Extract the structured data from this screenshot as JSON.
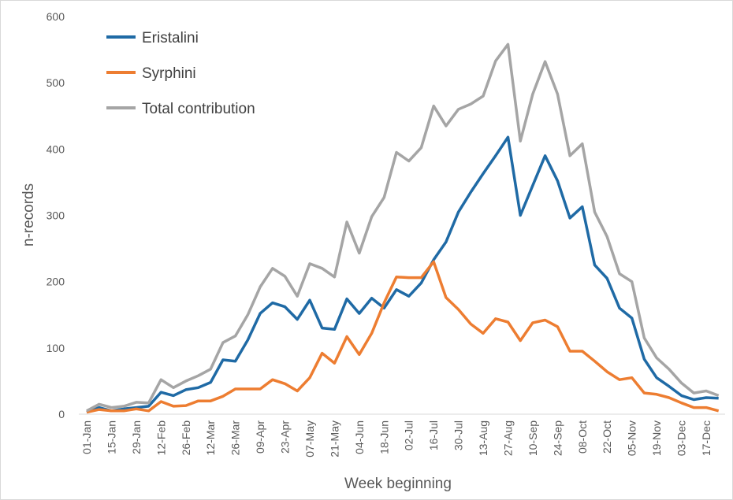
{
  "chart_data": {
    "type": "line",
    "categories": [
      "01-Jan",
      null,
      "15-Jan",
      null,
      "29-Jan",
      null,
      "12-Feb",
      null,
      "26-Feb",
      null,
      "12-Mar",
      null,
      "26-Mar",
      null,
      "09-Apr",
      null,
      "23-Apr",
      null,
      "07-May",
      null,
      "21-May",
      null,
      "04-Jun",
      null,
      "18-Jun",
      null,
      "02-Jul",
      null,
      "16-Jul",
      null,
      "30-Jul",
      null,
      "13-Aug",
      null,
      "27-Aug",
      null,
      "10-Sep",
      null,
      "24-Sep",
      null,
      "08-Oct",
      null,
      "22-Oct",
      null,
      "05-Nov",
      null,
      "19-Nov",
      null,
      "03-Dec",
      null,
      "17-Dec",
      null
    ],
    "series": [
      {
        "name": "Eristalini",
        "color": "#1f6aa5",
        "values": [
          3,
          10,
          5,
          8,
          10,
          12,
          33,
          28,
          37,
          40,
          48,
          82,
          80,
          112,
          152,
          168,
          162,
          143,
          172,
          130,
          128,
          174,
          152,
          175,
          160,
          188,
          178,
          198,
          233,
          260,
          305,
          335,
          363,
          390,
          418,
          300,
          345,
          390,
          352,
          296,
          313,
          225,
          205,
          160,
          145,
          83,
          55,
          42,
          28,
          22,
          25,
          24
        ]
      },
      {
        "name": "Syrphini",
        "color": "#ed7d31",
        "values": [
          3,
          7,
          5,
          5,
          8,
          5,
          19,
          12,
          13,
          20,
          20,
          27,
          38,
          38,
          38,
          52,
          46,
          35,
          55,
          92,
          77,
          117,
          90,
          122,
          168,
          207,
          206,
          206,
          230,
          176,
          158,
          136,
          122,
          144,
          139,
          111,
          138,
          142,
          132,
          95,
          95,
          80,
          64,
          52,
          55,
          32,
          30,
          25,
          17,
          10,
          10,
          5
        ]
      },
      {
        "name": "Total contribution",
        "color": "#a5a5a5",
        "values": [
          5,
          15,
          10,
          12,
          18,
          17,
          52,
          40,
          50,
          58,
          68,
          108,
          118,
          150,
          192,
          220,
          208,
          178,
          227,
          220,
          207,
          290,
          243,
          298,
          327,
          395,
          382,
          402,
          465,
          435,
          460,
          468,
          480,
          533,
          558,
          412,
          483,
          532,
          483,
          390,
          408,
          305,
          268,
          212,
          200,
          115,
          85,
          68,
          47,
          32,
          35,
          28
        ]
      }
    ],
    "xlabel": "Week beginning",
    "ylabel": "n-records",
    "ylim": [
      0,
      600
    ],
    "yticks": [
      0,
      100,
      200,
      300,
      400,
      500,
      600
    ],
    "legend": "upper left",
    "grid": false
  }
}
